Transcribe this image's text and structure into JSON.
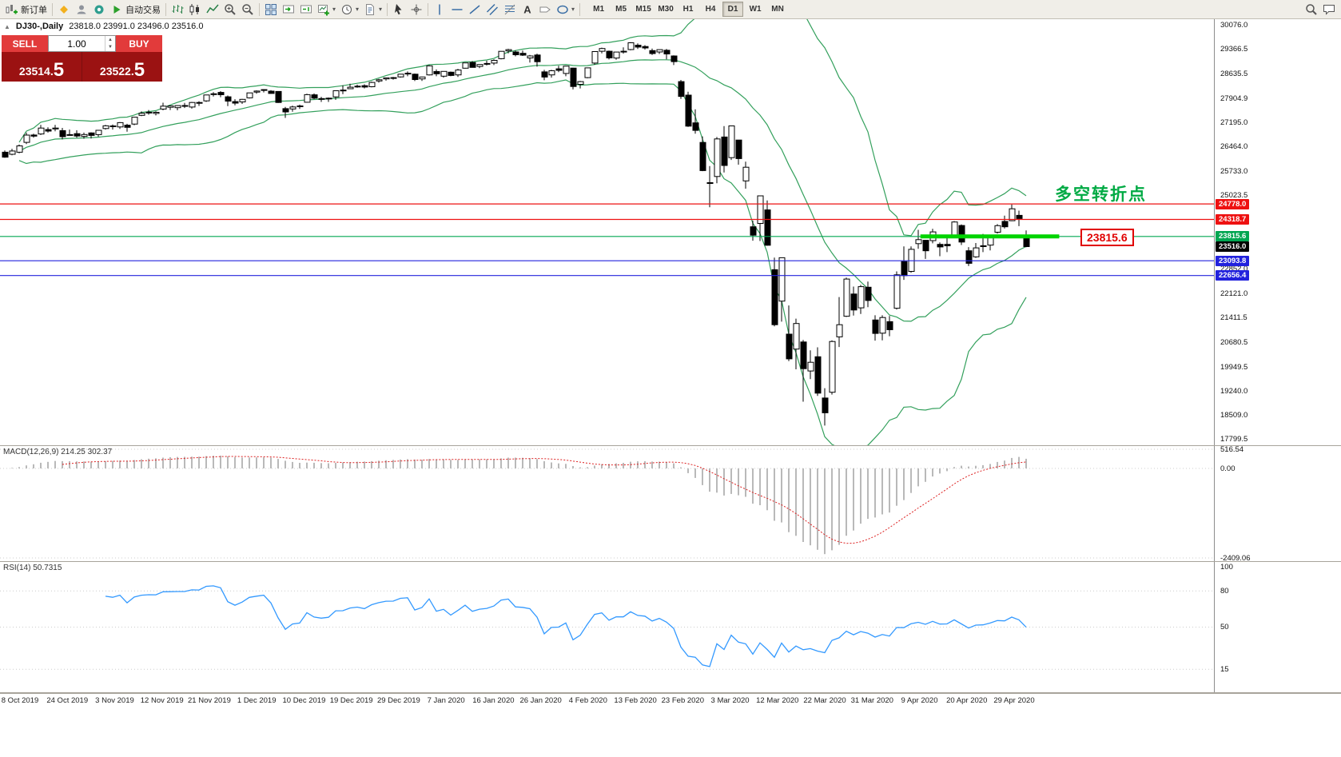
{
  "toolbar": {
    "new_order_label": "新订单",
    "autotrade_label": "自动交易",
    "timeframes": [
      "M1",
      "M5",
      "M15",
      "M30",
      "H1",
      "H4",
      "D1",
      "W1",
      "MN"
    ],
    "active_timeframe": "D1"
  },
  "one_click": {
    "sell_label": "SELL",
    "buy_label": "BUY",
    "volume": "1.00",
    "sell_price_base": "23514.",
    "sell_price_big": "5",
    "buy_price_base": "23522.",
    "buy_price_big": "5"
  },
  "chart_header": {
    "symbol": "DJ30-,Daily",
    "ohlc_text": "23818.0 23991.0 23496.0 23516.0"
  },
  "indicator_headers": {
    "macd": "MACD(12,26,9) 214.25 302.37",
    "rsi": "RSI(14) 50.7315"
  },
  "annotations": {
    "turning_point": "多空转折点",
    "level_flag": "23815.6"
  },
  "axis": {
    "price_labels": [
      30076.0,
      29366.5,
      28635.5,
      27904.9,
      27195.0,
      26464.0,
      25733.0,
      25023.5,
      22852.0,
      22121.0,
      21411.5,
      20680.5,
      19949.5,
      19240.0,
      18509.0,
      17799.5
    ],
    "macd_labels": [
      516.54,
      0,
      -2409.06
    ],
    "rsi_labels": [
      100,
      80,
      50,
      15
    ],
    "rsi_levels": [
      80,
      50,
      15
    ]
  },
  "levels": [
    {
      "value": 24778.0,
      "label": "24778.0",
      "color": "#ee1111"
    },
    {
      "value": 24318.7,
      "label": "24318.7",
      "color": "#ee1111"
    },
    {
      "value": 23815.6,
      "label": "23815.6",
      "color": "#00a651",
      "segment": {
        "from_bar": 127.3,
        "to_bar": 146.6,
        "color": "#00d400"
      }
    },
    {
      "value": 23093.8,
      "label": "23093.8",
      "color": "#2222dd"
    },
    {
      "value": 22656.4,
      "label": "22656.4",
      "color": "#2222dd"
    }
  ],
  "current_price": {
    "value": 23516.0,
    "label": "23516.0"
  },
  "chart_data": {
    "type": "candlestick",
    "symbol": "DJ30-",
    "period": "Daily",
    "price_range": [
      17630,
      30250
    ],
    "x_tick_labels": [
      "8 Oct 2019",
      "24 Oct 2019",
      "3 Nov 2019",
      "12 Nov 2019",
      "21 Nov 2019",
      "1 Dec 2019",
      "10 Dec 2019",
      "19 Dec 2019",
      "29 Dec 2019",
      "7 Jan 2020",
      "16 Jan 2020",
      "26 Jan 2020",
      "4 Feb 2020",
      "13 Feb 2020",
      "23 Feb 2020",
      "3 Mar 2020",
      "12 Mar 2020",
      "22 Mar 2020",
      "31 Mar 2020",
      "9 Apr 2020",
      "20 Apr 2020",
      "29 Apr 2020"
    ],
    "indicators": {
      "bollinger": {
        "period": 20,
        "deviation": 2,
        "color": "#33a05c"
      },
      "macd": {
        "fast": 12,
        "slow": 26,
        "signal": 9,
        "current_text": "214.25 302.37",
        "histogram_color": "#b9b9b9",
        "signal_color": "#dd2222",
        "ylim": [
          -2409.06,
          516.54
        ]
      },
      "rsi": {
        "period": 14,
        "current": 50.7315,
        "color": "#3399ff",
        "ylim": [
          0,
          100
        ]
      }
    },
    "ohlc": [
      [
        26310,
        26360,
        26144,
        26164
      ],
      [
        26250,
        26412,
        26220,
        26346
      ],
      [
        26310,
        26540,
        26280,
        26496
      ],
      [
        26600,
        26890,
        26550,
        26816
      ],
      [
        26820,
        26860,
        26740,
        26787
      ],
      [
        26850,
        27120,
        26820,
        27025
      ],
      [
        26980,
        27050,
        26890,
        26935
      ],
      [
        27000,
        27120,
        26930,
        27026
      ],
      [
        26950,
        27030,
        26690,
        26770
      ],
      [
        26830,
        26980,
        26810,
        26828
      ],
      [
        26860,
        26960,
        26740,
        26788
      ],
      [
        26780,
        26890,
        26710,
        26834
      ],
      [
        26880,
        26900,
        26714,
        26806
      ],
      [
        26830,
        26970,
        26770,
        26958
      ],
      [
        27010,
        27120,
        26980,
        27091
      ],
      [
        27090,
        27130,
        26980,
        27071
      ],
      [
        27060,
        27200,
        27000,
        27187
      ],
      [
        27110,
        27150,
        26918,
        27046
      ],
      [
        27143,
        27347,
        27110,
        27347
      ],
      [
        27400,
        27518,
        27380,
        27462
      ],
      [
        27480,
        27560,
        27420,
        27493
      ],
      [
        27460,
        27520,
        27400,
        27492
      ],
      [
        27590,
        27775,
        27550,
        27675
      ],
      [
        27640,
        27694,
        27560,
        27681
      ],
      [
        27630,
        27700,
        27550,
        27691
      ],
      [
        27690,
        27770,
        27620,
        27692
      ],
      [
        27650,
        27800,
        27600,
        27784
      ],
      [
        27760,
        27820,
        27680,
        27782
      ],
      [
        27830,
        28005,
        27800,
        28005
      ],
      [
        28040,
        28090,
        27960,
        28036
      ],
      [
        28080,
        28120,
        27940,
        28012
      ],
      [
        27950,
        27990,
        27675,
        27821
      ],
      [
        27810,
        27880,
        27700,
        27766
      ],
      [
        27800,
        27890,
        27740,
        27875
      ],
      [
        27920,
        28070,
        27900,
        28066
      ],
      [
        28090,
        28140,
        28040,
        28121
      ],
      [
        28150,
        28175,
        28080,
        28164
      ],
      [
        28120,
        28150,
        28040,
        28051
      ],
      [
        28110,
        28120,
        27770,
        27783
      ],
      [
        27600,
        27650,
        27325,
        27503
      ],
      [
        27590,
        27690,
        27510,
        27650
      ],
      [
        27680,
        27720,
        27590,
        27678
      ],
      [
        27790,
        28040,
        27780,
        28015
      ],
      [
        28010,
        28050,
        27880,
        27910
      ],
      [
        27900,
        27950,
        27800,
        27882
      ],
      [
        27890,
        27930,
        27800,
        27911
      ],
      [
        27950,
        28140,
        27860,
        28132
      ],
      [
        28150,
        28290,
        28030,
        28135
      ],
      [
        28190,
        28340,
        28180,
        28235
      ],
      [
        28260,
        28310,
        28220,
        28267
      ],
      [
        28280,
        28320,
        28200,
        28239
      ],
      [
        28250,
        28400,
        28230,
        28377
      ],
      [
        28420,
        28480,
        28370,
        28455
      ],
      [
        28480,
        28520,
        28430,
        28511
      ],
      [
        28520,
        28540,
        28460,
        28515
      ],
      [
        28540,
        28624,
        28520,
        28621
      ],
      [
        28650,
        28702,
        28560,
        28645
      ],
      [
        28620,
        28640,
        28418,
        28462
      ],
      [
        28480,
        28547,
        28420,
        28538
      ],
      [
        28600,
        28890,
        28580,
        28868
      ],
      [
        28700,
        28760,
        28560,
        28634
      ],
      [
        28560,
        28710,
        28520,
        28703
      ],
      [
        28680,
        28700,
        28560,
        28583
      ],
      [
        28600,
        28780,
        28540,
        28745
      ],
      [
        28800,
        28960,
        28790,
        28956
      ],
      [
        28970,
        29009,
        28820,
        28823
      ],
      [
        28850,
        28910,
        28800,
        28907
      ],
      [
        28920,
        29020,
        28880,
        28939
      ],
      [
        28950,
        29060,
        28890,
        29030
      ],
      [
        29080,
        29300,
        29060,
        29297
      ],
      [
        29310,
        29373,
        29240,
        29348
      ],
      [
        29280,
        29320,
        29150,
        29196
      ],
      [
        29240,
        29320,
        29160,
        29186
      ],
      [
        29100,
        29190,
        28966,
        29160
      ],
      [
        29190,
        29230,
        28843,
        28990
      ],
      [
        28690,
        28750,
        28440,
        28536
      ],
      [
        28600,
        28750,
        28520,
        28723
      ],
      [
        28780,
        28870,
        28680,
        28734
      ],
      [
        28640,
        28870,
        28560,
        28859
      ],
      [
        28800,
        28813,
        28169,
        28256
      ],
      [
        28320,
        28420,
        28200,
        28400
      ],
      [
        28520,
        28810,
        28500,
        28808
      ],
      [
        28950,
        29300,
        28900,
        29291
      ],
      [
        29300,
        29408,
        29240,
        29380
      ],
      [
        29300,
        29320,
        29056,
        29103
      ],
      [
        29100,
        29280,
        29050,
        29277
      ],
      [
        29300,
        29415,
        29230,
        29276
      ],
      [
        29350,
        29568,
        29330,
        29551
      ],
      [
        29480,
        29535,
        29370,
        29423
      ],
      [
        29440,
        29480,
        29350,
        29398
      ],
      [
        29320,
        29380,
        29190,
        29232
      ],
      [
        29280,
        29350,
        29220,
        29348
      ],
      [
        29330,
        29369,
        29060,
        29220
      ],
      [
        29160,
        29180,
        28890,
        28992
      ],
      [
        28400,
        28450,
        27890,
        27961
      ],
      [
        28000,
        28100,
        27060,
        27081
      ],
      [
        27180,
        27580,
        26860,
        26958
      ],
      [
        26600,
        26780,
        25750,
        25767
      ],
      [
        25400,
        25900,
        24680,
        25409
      ],
      [
        25590,
        26760,
        25390,
        26703
      ],
      [
        26760,
        27085,
        25710,
        25917
      ],
      [
        26150,
        27090,
        26080,
        27090
      ],
      [
        26670,
        26670,
        25940,
        26121
      ],
      [
        25460,
        26030,
        25230,
        25865
      ],
      [
        24100,
        24280,
        23690,
        23851
      ],
      [
        24200,
        25020,
        23680,
        25018
      ],
      [
        24600,
        24880,
        23540,
        23553
      ],
      [
        22830,
        23190,
        21150,
        21200
      ],
      [
        21900,
        23190,
        21290,
        23185
      ],
      [
        20920,
        21770,
        20120,
        20188
      ],
      [
        20480,
        21380,
        19880,
        21237
      ],
      [
        20690,
        20750,
        18920,
        19898
      ],
      [
        19830,
        20440,
        19590,
        20087
      ],
      [
        20250,
        20530,
        19090,
        19173
      ],
      [
        19030,
        19320,
        18213,
        18591
      ],
      [
        19200,
        20740,
        19130,
        20704
      ],
      [
        20840,
        22020,
        20540,
        21200
      ],
      [
        21450,
        22595,
        21430,
        22552
      ],
      [
        22110,
        22330,
        21470,
        21636
      ],
      [
        21700,
        22380,
        21520,
        22327
      ],
      [
        22310,
        22480,
        21720,
        21917
      ],
      [
        21340,
        21480,
        20730,
        20943
      ],
      [
        20950,
        21480,
        20740,
        21413
      ],
      [
        21290,
        21460,
        20860,
        21052
      ],
      [
        21690,
        22780,
        21650,
        22679
      ],
      [
        23070,
        23520,
        22530,
        22653
      ],
      [
        22780,
        23520,
        22740,
        23433
      ],
      [
        23600,
        24010,
        23450,
        23719
      ],
      [
        23700,
        23710,
        23150,
        23390
      ],
      [
        23690,
        24040,
        23610,
        23949
      ],
      [
        23580,
        23640,
        23230,
        23504
      ],
      [
        23580,
        23820,
        23350,
        23537
      ],
      [
        23820,
        24270,
        23810,
        24242
      ],
      [
        24140,
        24170,
        23560,
        23650
      ],
      [
        23390,
        23500,
        22940,
        23018
      ],
      [
        23210,
        23620,
        23180,
        23475
      ],
      [
        23540,
        23890,
        23350,
        23515
      ],
      [
        23560,
        23830,
        23400,
        23775
      ],
      [
        23940,
        24180,
        23900,
        24133
      ],
      [
        24260,
        24430,
        24050,
        24101
      ],
      [
        24280,
        24765,
        24270,
        24633
      ],
      [
        24440,
        24580,
        24120,
        24345
      ],
      [
        23818,
        23991,
        23496,
        23516
      ]
    ]
  }
}
